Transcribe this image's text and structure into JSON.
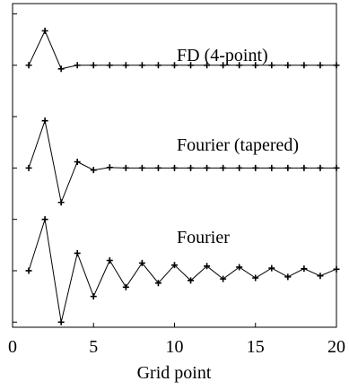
{
  "chart_data": {
    "type": "line",
    "title": "",
    "xlabel": "Grid point",
    "ylabel": "",
    "xlim": [
      0,
      20
    ],
    "x_ticks": [
      0,
      5,
      10,
      15,
      20
    ],
    "y_ticks_shown": false,
    "grid": false,
    "legend": "none",
    "marker": "plus",
    "line_color": "#000000",
    "series": [
      {
        "name": "FD (4-point)",
        "x": [
          1,
          2,
          3,
          4,
          5,
          6,
          7,
          8,
          9,
          10,
          11,
          12,
          13,
          14,
          15,
          16,
          17,
          18,
          19,
          20
        ],
        "y": [
          5.0,
          5.67,
          4.93,
          5.0,
          5.0,
          5.0,
          5.0,
          5.0,
          5.0,
          5.0,
          5.0,
          5.0,
          5.0,
          5.0,
          5.0,
          5.0,
          5.0,
          5.0,
          5.0,
          5.0
        ]
      },
      {
        "name": "Fourier (tapered)",
        "x": [
          1,
          2,
          3,
          4,
          5,
          6,
          7,
          8,
          9,
          10,
          11,
          12,
          13,
          14,
          15,
          16,
          17,
          18,
          19,
          20
        ],
        "y": [
          3.0,
          3.92,
          2.33,
          3.12,
          2.96,
          3.01,
          3.0,
          3.0,
          3.0,
          3.0,
          3.0,
          3.0,
          3.0,
          3.0,
          3.0,
          3.0,
          3.0,
          3.0,
          3.0,
          3.0
        ]
      },
      {
        "name": "Fourier",
        "x": [
          1,
          2,
          3,
          4,
          5,
          6,
          7,
          8,
          9,
          10,
          11,
          12,
          13,
          14,
          15,
          16,
          17,
          18,
          19,
          20
        ],
        "y": [
          1.0,
          2.0,
          0.0,
          1.34,
          0.5,
          1.2,
          0.68,
          1.15,
          0.76,
          1.11,
          0.81,
          1.09,
          0.84,
          1.07,
          0.86,
          1.05,
          0.88,
          1.04,
          0.9,
          1.03
        ]
      }
    ]
  }
}
